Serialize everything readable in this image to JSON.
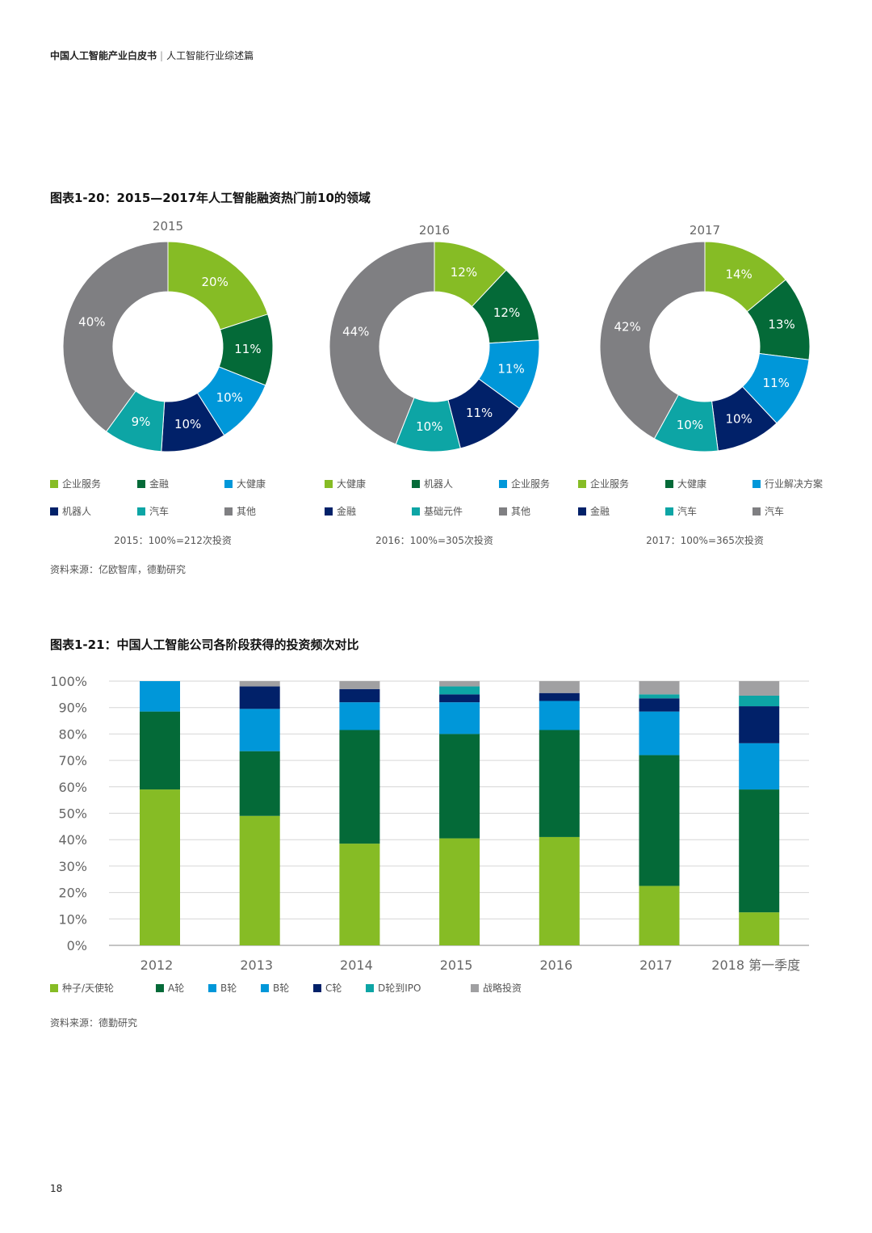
{
  "header": {
    "title_bold": "中国人工智能产业白皮书",
    "separator": "|",
    "subtitle": "人工智能行业综述篇"
  },
  "fig1": {
    "title": "图表1-20：2015—2017年人工智能融资热门前10的领域",
    "source": "资料来源：亿欧智库，德勤研究"
  },
  "fig2": {
    "title": "图表1-21：中国人工智能公司各阶段获得的投资频次对比",
    "source": "资料来源：德勤研究"
  },
  "page_number": "18",
  "colors": {
    "light_green": "#86bc25",
    "dark_green": "#046a38",
    "blue": "#0097d9",
    "navy": "#012169",
    "teal": "#0da5a5",
    "gray": "#7f7f82",
    "light_gray": "#a0a0a2"
  },
  "chart_data": [
    {
      "type": "pie",
      "title": "2015",
      "total_label": "2015：100%=212次投资",
      "slices": [
        {
          "name": "企业服务",
          "value": 20,
          "label": "20%",
          "color": "#86bc25"
        },
        {
          "name": "金融",
          "value": 11,
          "label": "11%",
          "color": "#046a38"
        },
        {
          "name": "大健康",
          "value": 10,
          "label": "10%",
          "color": "#0097d9"
        },
        {
          "name": "机器人",
          "value": 10,
          "label": "10%",
          "color": "#012169"
        },
        {
          "name": "汽车",
          "value": 9,
          "label": "9%",
          "color": "#0da5a5"
        },
        {
          "name": "其他",
          "value": 40,
          "label": "40%",
          "color": "#7f7f82"
        }
      ]
    },
    {
      "type": "pie",
      "title": "2016",
      "total_label": "2016：100%=305次投资",
      "slices": [
        {
          "name": "大健康",
          "value": 12,
          "label": "12%",
          "color": "#86bc25"
        },
        {
          "name": "机器人",
          "value": 12,
          "label": "12%",
          "color": "#046a38"
        },
        {
          "name": "企业服务",
          "value": 11,
          "label": "11%",
          "color": "#0097d9"
        },
        {
          "name": "金融",
          "value": 11,
          "label": "11%",
          "color": "#012169"
        },
        {
          "name": "基础元件",
          "value": 10,
          "label": "10%",
          "color": "#0da5a5"
        },
        {
          "name": "其他",
          "value": 44,
          "label": "44%",
          "color": "#7f7f82"
        }
      ]
    },
    {
      "type": "pie",
      "title": "2017",
      "total_label": "2017：100%=365次投资",
      "slices": [
        {
          "name": "企业服务",
          "value": 14,
          "label": "14%",
          "color": "#86bc25"
        },
        {
          "name": "大健康",
          "value": 13,
          "label": "13%",
          "color": "#046a38"
        },
        {
          "name": "行业解决方案",
          "value": 11,
          "label": "11%",
          "color": "#0097d9"
        },
        {
          "name": "金融",
          "value": 10,
          "label": "10%",
          "color": "#012169"
        },
        {
          "name": "汽车",
          "value": 10,
          "label": "10%",
          "color": "#0da5a5"
        },
        {
          "name": "汽车",
          "value": 42,
          "label": "42%",
          "color": "#7f7f82"
        }
      ]
    },
    {
      "type": "bar",
      "stacked": true,
      "categories": [
        "2012",
        "2013",
        "2014",
        "2015",
        "2016",
        "2017",
        "2018 第一季度"
      ],
      "yticks": [
        "0%",
        "10%",
        "20%",
        "30%",
        "40%",
        "50%",
        "60%",
        "70%",
        "80%",
        "90%",
        "100%"
      ],
      "ylim": [
        0,
        100
      ],
      "grid": true,
      "legend_position": "bottom",
      "series": [
        {
          "name": "种子/天使轮",
          "color": "#86bc25",
          "values": [
            59,
            49,
            38.5,
            40.5,
            41,
            22.5,
            12.5
          ]
        },
        {
          "name": "A轮",
          "color": "#046a38",
          "values": [
            29.5,
            24.5,
            43,
            39.5,
            40.5,
            49.5,
            46.5
          ]
        },
        {
          "name": "B轮",
          "color": "#0097d9",
          "values": [
            11.5,
            16,
            10.5,
            12,
            11,
            16.5,
            17.5
          ]
        },
        {
          "name": "B轮",
          "color": "#0097d9",
          "values": [
            0,
            0,
            0,
            0,
            0,
            0,
            0
          ]
        },
        {
          "name": "C轮",
          "color": "#012169",
          "values": [
            0,
            8.5,
            5,
            3,
            3,
            5,
            14
          ]
        },
        {
          "name": "D轮到IPO",
          "color": "#0da5a5",
          "values": [
            0,
            0,
            0,
            3,
            0,
            1.5,
            4
          ]
        },
        {
          "name": "战略投资",
          "color": "#a0a0a2",
          "values": [
            0,
            2,
            3,
            2,
            4.5,
            5,
            5.5
          ]
        }
      ]
    }
  ]
}
